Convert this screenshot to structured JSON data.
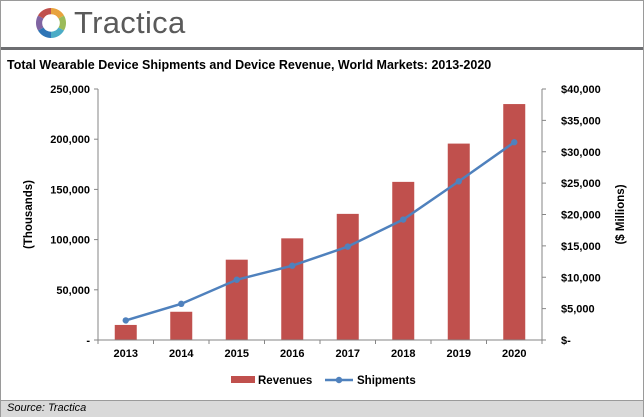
{
  "brand": {
    "name": "Tractica"
  },
  "footer": {
    "source": "Source: Tractica"
  },
  "colors": {
    "bar": "#c0504d",
    "line": "#4f81bd",
    "rule": "#6d6e71",
    "footer_bg": "#d9d9d9"
  },
  "chart_data": {
    "type": "bar+line",
    "title": "Total Wearable Device Shipments and Device Revenue, World Markets: 2013-2020",
    "categories": [
      "2013",
      "2014",
      "2015",
      "2016",
      "2017",
      "2018",
      "2019",
      "2020"
    ],
    "series": [
      {
        "name": "Revenues",
        "type": "bar",
        "axis": "right",
        "values": [
          2400,
          4500,
          12800,
          16200,
          20100,
          25200,
          31300,
          37600
        ]
      },
      {
        "name": "Shipments",
        "type": "line",
        "axis": "left",
        "values": [
          19500,
          36000,
          60000,
          74000,
          93000,
          120000,
          158000,
          197000
        ]
      }
    ],
    "ylabel": "(Thousands)",
    "y2label": "($ Millions)",
    "ylim": [
      0,
      250000
    ],
    "y2lim": [
      0,
      40000
    ],
    "yticks": [
      "-",
      "50,000",
      "100,000",
      "150,000",
      "200,000",
      "250,000"
    ],
    "y2ticks": [
      "$-",
      "$5,000",
      "$10,000",
      "$15,000",
      "$20,000",
      "$25,000",
      "$30,000",
      "$35,000",
      "$40,000"
    ],
    "grid": false,
    "legend": "bottom-center"
  }
}
